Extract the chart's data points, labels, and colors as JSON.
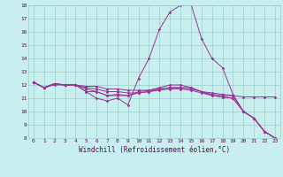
{
  "xlabel": "Windchill (Refroidissement éolien,°C)",
  "xlim": [
    -0.5,
    23.5
  ],
  "ylim": [
    8,
    18
  ],
  "xticks": [
    0,
    1,
    2,
    3,
    4,
    5,
    6,
    7,
    8,
    9,
    10,
    11,
    12,
    13,
    14,
    15,
    16,
    17,
    18,
    19,
    20,
    21,
    22,
    23
  ],
  "yticks": [
    8,
    9,
    10,
    11,
    12,
    13,
    14,
    15,
    16,
    17,
    18
  ],
  "background_color": "#c8eeed",
  "grid_color": "#99cccc",
  "line_color": "#993399",
  "lines": [
    [
      12.2,
      11.8,
      12.1,
      12.0,
      12.0,
      11.9,
      11.9,
      11.7,
      11.7,
      11.6,
      11.6,
      11.6,
      11.7,
      11.8,
      11.8,
      11.7,
      11.5,
      11.4,
      11.3,
      11.2,
      11.1,
      11.1,
      11.1,
      11.1
    ],
    [
      12.2,
      11.8,
      12.1,
      12.0,
      12.0,
      11.8,
      11.7,
      11.5,
      11.5,
      11.4,
      11.4,
      11.5,
      11.6,
      11.7,
      11.7,
      11.6,
      11.4,
      11.2,
      11.1,
      11.0,
      10.0,
      9.5,
      8.5,
      8.0
    ],
    [
      12.2,
      11.8,
      12.1,
      12.0,
      12.0,
      11.7,
      11.5,
      11.2,
      11.2,
      11.2,
      11.4,
      11.5,
      11.7,
      11.8,
      11.8,
      11.8,
      11.5,
      11.2,
      11.1,
      11.0,
      10.0,
      9.5,
      8.5,
      8.0
    ],
    [
      12.2,
      11.8,
      12.1,
      12.0,
      12.0,
      11.5,
      11.5,
      11.2,
      11.3,
      11.2,
      11.5,
      11.6,
      11.8,
      12.0,
      12.0,
      11.8,
      11.5,
      11.3,
      11.2,
      11.2,
      10.0,
      9.5,
      8.5,
      8.0
    ],
    [
      12.2,
      11.8,
      12.0,
      12.0,
      12.0,
      11.5,
      11.0,
      10.8,
      11.0,
      10.5,
      12.5,
      14.0,
      16.2,
      17.5,
      18.0,
      18.1,
      15.5,
      14.0,
      13.3,
      11.3,
      10.0,
      9.5,
      8.5,
      8.0
    ]
  ]
}
